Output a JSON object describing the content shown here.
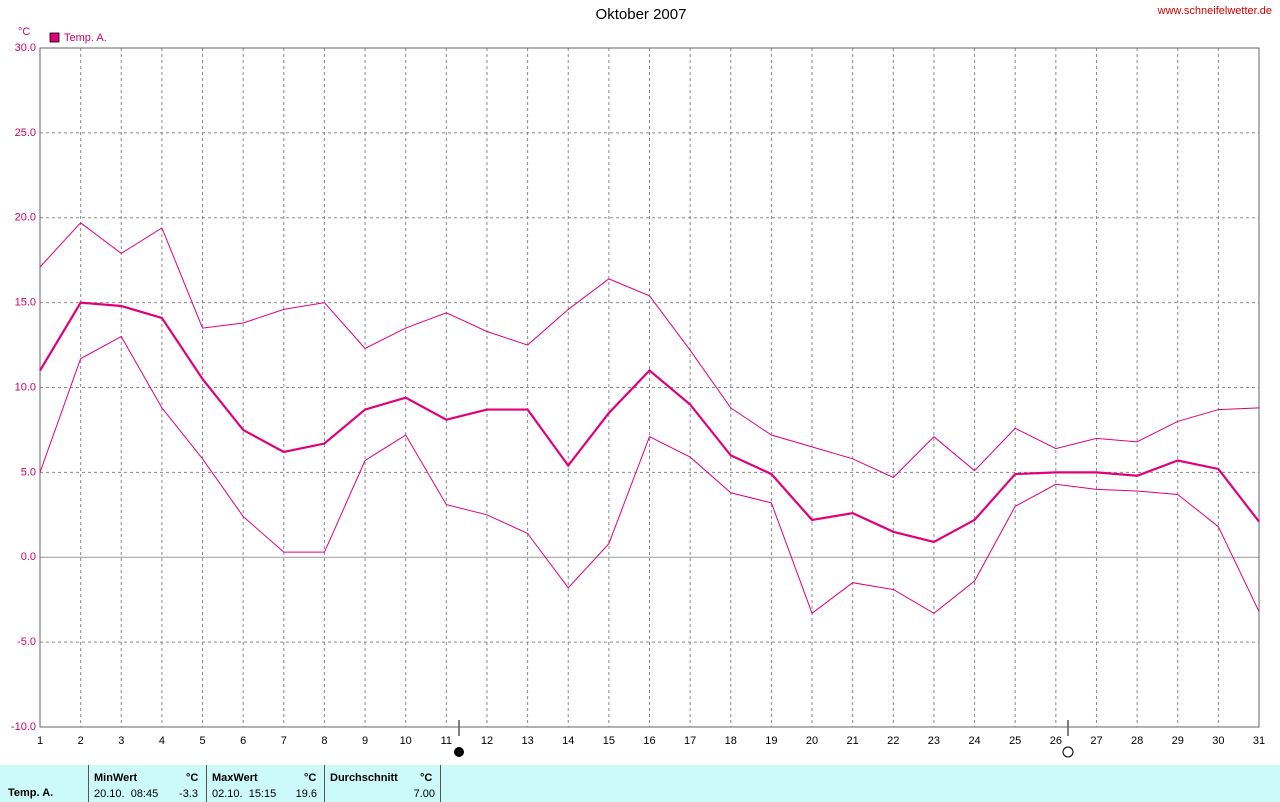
{
  "chart_data": {
    "type": "line",
    "title": "Oktober 2007",
    "source": "www.schneifelwetter.de",
    "y_unit": "°C",
    "legend": "Temp. A.",
    "x": [
      1,
      2,
      3,
      4,
      5,
      6,
      7,
      8,
      9,
      10,
      11,
      12,
      13,
      14,
      15,
      16,
      17,
      18,
      19,
      20,
      21,
      22,
      23,
      24,
      25,
      26,
      27,
      28,
      29,
      30,
      31
    ],
    "xlim": [
      1,
      31
    ],
    "xticks": [
      1,
      2,
      3,
      4,
      5,
      6,
      7,
      8,
      9,
      10,
      11,
      12,
      13,
      14,
      15,
      16,
      17,
      18,
      19,
      20,
      21,
      22,
      23,
      24,
      25,
      26,
      27,
      28,
      29,
      30,
      31
    ],
    "ylim": [
      -10,
      30
    ],
    "yticks": [
      {
        "value": -10,
        "label": "-10.0"
      },
      {
        "value": -5,
        "label": "-5.0"
      },
      {
        "value": 0,
        "label": "0.0"
      },
      {
        "value": 5,
        "label": "5.0"
      },
      {
        "value": 10,
        "label": "10.0"
      },
      {
        "value": 15,
        "label": "15.0"
      },
      {
        "value": 20,
        "label": "20.0"
      },
      {
        "value": 25,
        "label": "25.0"
      },
      {
        "value": 30,
        "label": "30.0"
      }
    ],
    "grid": true,
    "series": [
      {
        "color": "#e0007a",
        "line_width": 1,
        "values": [
          17.1,
          19.7,
          17.9,
          19.4,
          13.5,
          13.8,
          14.6,
          15.0,
          12.3,
          13.5,
          14.4,
          13.3,
          12.5,
          14.6,
          16.4,
          15.4,
          12.2,
          8.8,
          7.2,
          6.5,
          5.8,
          4.7,
          7.1,
          5.1,
          7.6,
          6.4,
          7.0,
          6.8,
          8.0,
          8.7,
          8.8
        ]
      },
      {
        "color": "#e0007a",
        "line_width": 2.2,
        "values": [
          11.0,
          15.0,
          14.8,
          14.1,
          10.5,
          7.5,
          6.2,
          6.7,
          8.7,
          9.4,
          8.1,
          8.7,
          8.7,
          5.4,
          8.5,
          11.0,
          9.0,
          6.0,
          4.9,
          2.2,
          2.6,
          1.5,
          0.9,
          2.2,
          4.9,
          5.0,
          5.0,
          4.8,
          5.7,
          5.2,
          2.1
        ]
      },
      {
        "color": "#e0007a",
        "line_width": 1,
        "values": [
          5.0,
          11.7,
          13.0,
          8.8,
          5.8,
          2.4,
          0.3,
          0.3,
          5.7,
          7.2,
          3.1,
          2.5,
          1.4,
          -1.8,
          0.8,
          7.1,
          5.9,
          3.8,
          3.2,
          -3.3,
          -1.5,
          -1.9,
          -3.3,
          -1.4,
          3.0,
          4.3,
          4.0,
          3.9,
          3.7,
          1.8,
          -3.2
        ]
      }
    ]
  },
  "stats_table": {
    "row_label": "Temp. A.",
    "min": {
      "header": "MinWert",
      "unit": "°C",
      "time": "20.10.  08:45",
      "value": "-3.3"
    },
    "max": {
      "header": "MaxWert",
      "unit": "°C",
      "time": "02.10.  15:15",
      "value": "19.6"
    },
    "avg": {
      "header": "Durchschnitt",
      "unit": "°C",
      "value": "7.00"
    }
  }
}
